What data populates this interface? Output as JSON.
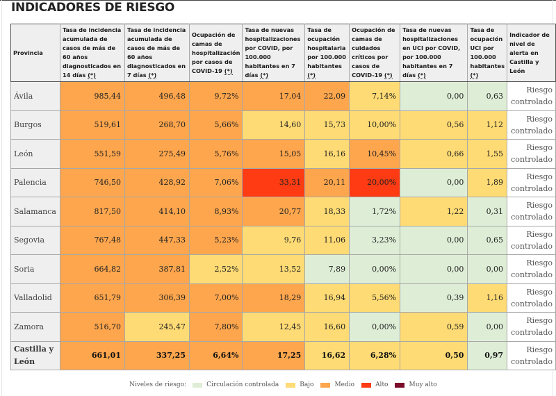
{
  "title": "INDICADORES DE RIESGO",
  "table": {
    "headers": [
      {
        "text": "Provincia",
        "star": ""
      },
      {
        "text": "Tasa de incidencia acumulada de casos de más de 60 años diagnosticados en 14 días ",
        "star": "(*)"
      },
      {
        "text": "Tasa de incidencia acumulada de casos de más de 60 años diagnosticados en 7 días ",
        "star": "(*)"
      },
      {
        "text": "Ocupación de camas de hospitalización por casos de COVID-19 ",
        "star": "(*)"
      },
      {
        "text": "Tasa de nuevas hospitalizaciones por COVID, por 100.000 habitantes en 7 días ",
        "star": "(*)"
      },
      {
        "text": "Tasa de ocupación hospitalaria por 100.000 habitantes ",
        "star": "(*)"
      },
      {
        "text": "Ocupación de camas de cuidados críticos por casos de COVID-19 ",
        "star": "(*)"
      },
      {
        "text": "Tasa de nuevas hospitalizaciones en UCI por COVID, por 100.000 habitantes en 7 días ",
        "star": "(*)"
      },
      {
        "text": "Tasa de ocupación UCI por 100.000 habitantes ",
        "star": "(*)"
      },
      {
        "text": "Indicador de nivel de alerta en Castilla y León",
        "star": ""
      }
    ],
    "rows": [
      {
        "province": "Ávila",
        "values": [
          "985,44",
          "496,48",
          "9,72%",
          "17,04",
          "22,09",
          "7,14%",
          "0,00",
          "0,63"
        ],
        "levels": [
          "medio",
          "medio",
          "medio",
          "medio",
          "medio",
          "bajo",
          "cc",
          "cc"
        ],
        "alert": "Riesgo controlado"
      },
      {
        "province": "Burgos",
        "values": [
          "519,61",
          "268,70",
          "5,66%",
          "14,60",
          "15,73",
          "10,00%",
          "0,56",
          "1,12"
        ],
        "levels": [
          "medio",
          "medio",
          "medio",
          "bajo",
          "bajo",
          "bajo",
          "bajo",
          "bajo"
        ],
        "alert": "Riesgo controlado"
      },
      {
        "province": "León",
        "values": [
          "551,59",
          "275,49",
          "5,76%",
          "15,05",
          "16,16",
          "10,45%",
          "0,66",
          "1,55"
        ],
        "levels": [
          "medio",
          "medio",
          "medio",
          "medio",
          "bajo",
          "medio",
          "bajo",
          "bajo"
        ],
        "alert": "Riesgo controlado"
      },
      {
        "province": "Palencia",
        "values": [
          "746,50",
          "428,92",
          "7,06%",
          "33,31",
          "20,11",
          "20,00%",
          "0,00",
          "1,89"
        ],
        "levels": [
          "medio",
          "medio",
          "medio",
          "alto",
          "medio",
          "alto",
          "cc",
          "bajo"
        ],
        "alert": "Riesgo controlado"
      },
      {
        "province": "Salamanca",
        "values": [
          "817,50",
          "414,10",
          "8,93%",
          "20,77",
          "18,33",
          "1,72%",
          "1,22",
          "0,31"
        ],
        "levels": [
          "medio",
          "medio",
          "medio",
          "medio",
          "bajo",
          "cc",
          "bajo",
          "cc"
        ],
        "alert": "Riesgo controlado"
      },
      {
        "province": "Segovia",
        "values": [
          "767,48",
          "447,33",
          "5,23%",
          "9,76",
          "11,06",
          "3,23%",
          "0,00",
          "0,65"
        ],
        "levels": [
          "medio",
          "medio",
          "medio",
          "bajo",
          "bajo",
          "cc",
          "cc",
          "cc"
        ],
        "alert": "Riesgo controlado"
      },
      {
        "province": "Soria",
        "values": [
          "664,82",
          "387,81",
          "2,52%",
          "13,52",
          "7,89",
          "0,00%",
          "0,00",
          "0,00"
        ],
        "levels": [
          "medio",
          "medio",
          "bajo",
          "bajo",
          "cc",
          "cc",
          "cc",
          "cc"
        ],
        "alert": "Riesgo controlado"
      },
      {
        "province": "Valladolid",
        "values": [
          "651,79",
          "306,39",
          "7,00%",
          "18,29",
          "16,94",
          "5,56%",
          "0,39",
          "1,16"
        ],
        "levels": [
          "medio",
          "medio",
          "medio",
          "medio",
          "bajo",
          "bajo",
          "cc",
          "bajo"
        ],
        "alert": "Riesgo controlado"
      },
      {
        "province": "Zamora",
        "values": [
          "516,70",
          "245,47",
          "7,80%",
          "12,45",
          "16,60",
          "0,00%",
          "0,59",
          "0,00"
        ],
        "levels": [
          "medio",
          "bajo",
          "medio",
          "bajo",
          "bajo",
          "cc",
          "bajo",
          "cc"
        ],
        "alert": "Riesgo controlado"
      },
      {
        "province": "Castilla y León",
        "values": [
          "661,01",
          "337,25",
          "6,64%",
          "17,25",
          "16,62",
          "6,28%",
          "0,50",
          "0,97"
        ],
        "levels": [
          "medio",
          "medio",
          "medio",
          "medio",
          "bajo",
          "bajo",
          "bajo",
          "cc"
        ],
        "alert": "Riesgo controlado",
        "total": true
      }
    ]
  },
  "legend": {
    "label": "Niveles de riesgo:",
    "items": [
      {
        "key": "cc",
        "label": "Circulación controlada",
        "color": "#deeed6"
      },
      {
        "key": "bajo",
        "label": "Bajo",
        "color": "#fedb74"
      },
      {
        "key": "medio",
        "label": "Medio",
        "color": "#fea64d"
      },
      {
        "key": "alto",
        "label": "Alto",
        "color": "#fe3b12"
      },
      {
        "key": "muyalto",
        "label": "Muy alto",
        "color": "#7a0c2a"
      }
    ]
  }
}
